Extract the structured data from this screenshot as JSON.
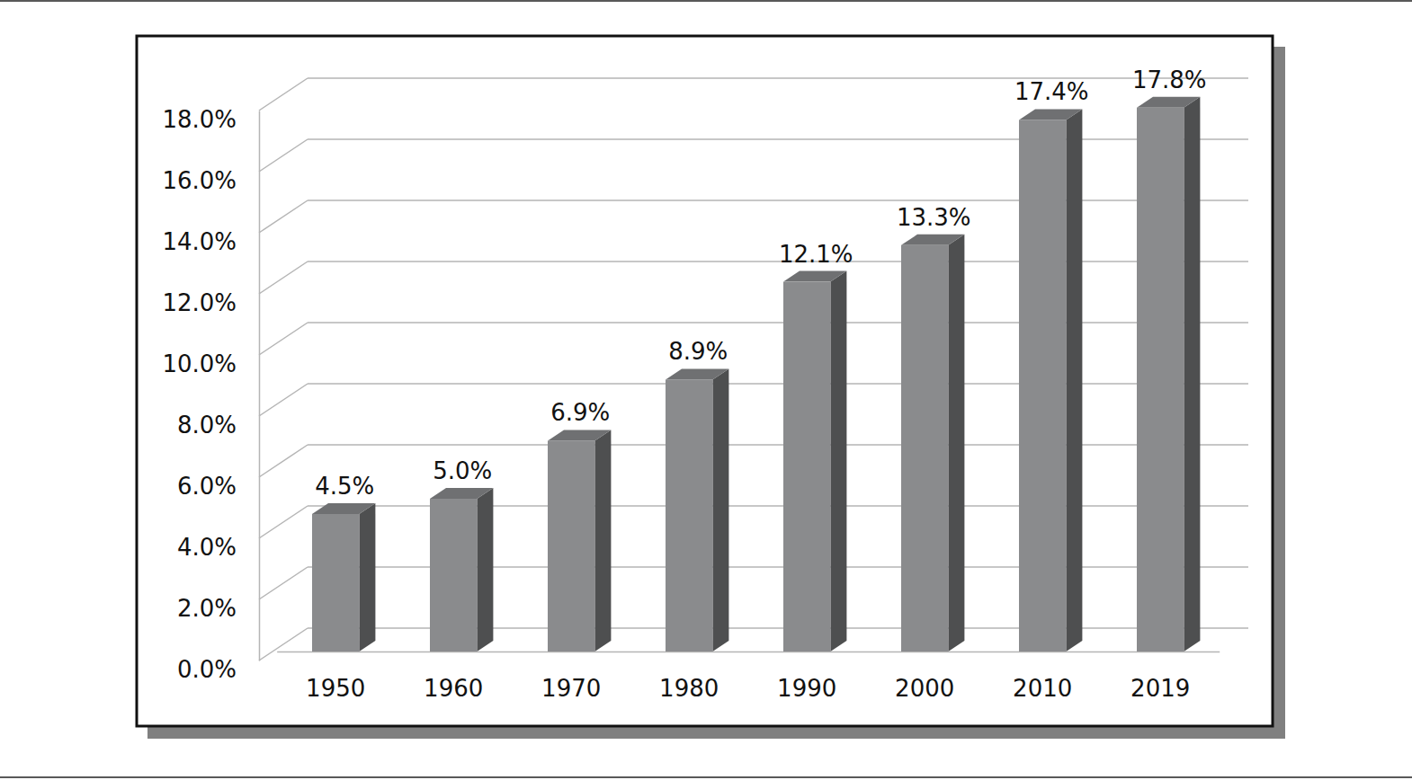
{
  "chart_data": {
    "type": "bar",
    "categories": [
      "1950",
      "1960",
      "1970",
      "1980",
      "1990",
      "2000",
      "2010",
      "2019"
    ],
    "values": [
      4.5,
      5.0,
      6.9,
      8.9,
      12.1,
      13.3,
      17.4,
      17.8
    ],
    "value_labels": [
      "4.5%",
      "5.0%",
      "6.9%",
      "8.9%",
      "12.1%",
      "13.3%",
      "17.4%",
      "17.8%"
    ],
    "color": "#8a8b8d",
    "ylim": [
      0,
      18
    ],
    "yticks": [
      {
        "value": 0,
        "label": "0.0%"
      },
      {
        "value": 2,
        "label": "2.0%"
      },
      {
        "value": 4,
        "label": "4.0%"
      },
      {
        "value": 6,
        "label": "6.0%"
      },
      {
        "value": 8,
        "label": "8.0%"
      },
      {
        "value": 10,
        "label": "10.0%"
      },
      {
        "value": 12,
        "label": "12.0%"
      },
      {
        "value": 14,
        "label": "14.0%"
      },
      {
        "value": 16,
        "label": "16.0%"
      },
      {
        "value": 18,
        "label": "18.0%"
      }
    ],
    "grid": true,
    "data_labels": true
  }
}
